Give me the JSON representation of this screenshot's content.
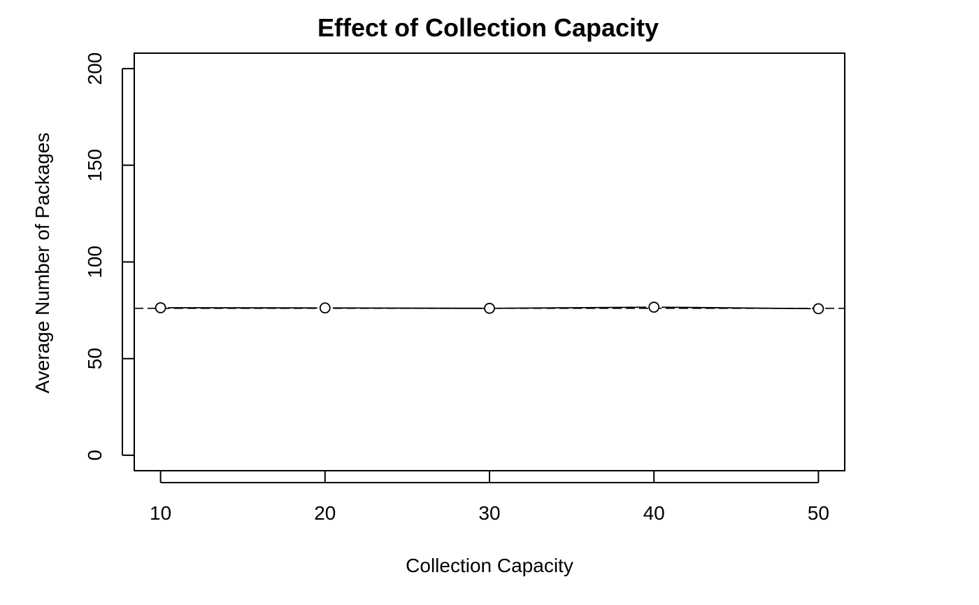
{
  "chart_data": {
    "type": "line",
    "title": "Effect of Collection Capacity",
    "xlabel": "Collection Capacity",
    "ylabel": "Average Number of Packages",
    "x_ticks": [
      10,
      20,
      30,
      40,
      50
    ],
    "y_ticks": [
      0,
      50,
      100,
      150,
      200
    ],
    "xlim": [
      8.4,
      51.6
    ],
    "ylim": [
      -8,
      208
    ],
    "series": [
      {
        "x": [
          10,
          20,
          30,
          40,
          50
        ],
        "values": [
          76.3,
          76.2,
          76.0,
          76.6,
          75.8
        ],
        "marker": "open-circle",
        "line": "solid"
      }
    ],
    "reference_line": {
      "y": 76.0,
      "style": "dashed"
    },
    "grid": false,
    "legend": "none"
  }
}
